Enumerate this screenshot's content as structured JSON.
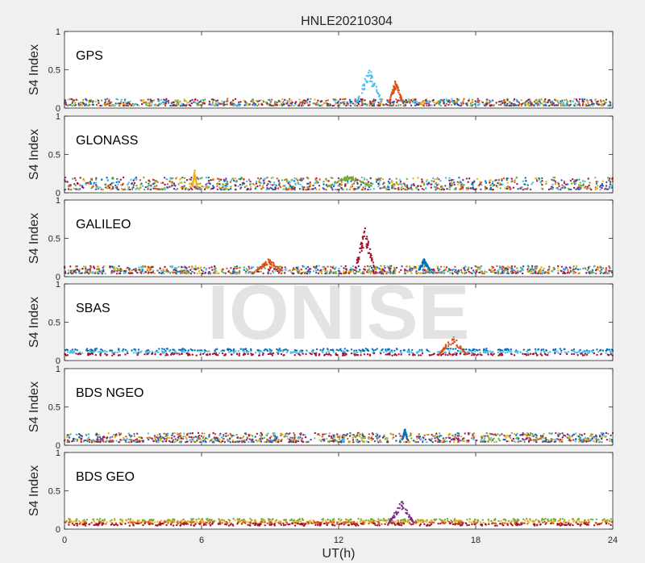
{
  "title": "HNLE20210304",
  "watermark": "IONISE",
  "chart_data": [
    {
      "type": "scatter",
      "panel_label": "GPS",
      "ylabel": "S4 Index",
      "xlim": [
        0,
        24
      ],
      "ylim": [
        0,
        1
      ],
      "xticks": [
        0,
        6,
        12,
        18,
        24
      ],
      "yticks": [
        0,
        0.5,
        1
      ],
      "baseline": [
        0.03,
        0.12
      ],
      "spikes": [
        {
          "x": [
            12.8,
            13.9
          ],
          "peak": 0.55,
          "color": "#4DBEEE"
        },
        {
          "x": [
            14.2,
            14.8
          ],
          "peak": 0.38,
          "color": "#D95319"
        }
      ]
    },
    {
      "type": "scatter",
      "panel_label": "GLONASS",
      "ylabel": "S4 Index",
      "xlim": [
        0,
        24
      ],
      "ylim": [
        0,
        1
      ],
      "xticks": [
        0,
        6,
        12,
        18,
        24
      ],
      "yticks": [
        0,
        0.5,
        1
      ],
      "baseline": [
        0.04,
        0.2
      ],
      "spikes": [
        {
          "x": [
            5.6,
            5.8
          ],
          "peak": 0.31,
          "color": "#EDB120"
        },
        {
          "x": [
            11.5,
            13.5
          ],
          "peak": 0.24,
          "color": "#77AC30"
        }
      ]
    },
    {
      "type": "scatter",
      "panel_label": "GALILEO",
      "ylabel": "S4 Index",
      "xlim": [
        0,
        24
      ],
      "ylim": [
        0,
        1
      ],
      "xticks": [
        0,
        6,
        12,
        18,
        24
      ],
      "yticks": [
        0,
        0.5,
        1
      ],
      "baseline": [
        0.04,
        0.14
      ],
      "spikes": [
        {
          "x": [
            12.7,
            13.6
          ],
          "peak": 0.66,
          "color": "#A2142F"
        },
        {
          "x": [
            8.4,
            9.5
          ],
          "peak": 0.24,
          "color": "#D95319"
        },
        {
          "x": [
            15.5,
            16.0
          ],
          "peak": 0.24,
          "color": "#0072BD"
        }
      ]
    },
    {
      "type": "scatter",
      "panel_label": "SBAS",
      "ylabel": "S4 Index",
      "xlim": [
        0,
        24
      ],
      "ylim": [
        0,
        1
      ],
      "xticks": [
        0,
        6,
        12,
        18,
        24
      ],
      "yticks": [
        0,
        0.5,
        1
      ],
      "bands": [
        {
          "y": 0.14,
          "color": "#0072BD"
        },
        {
          "y": 0.11,
          "color": "#4DBEEE"
        },
        {
          "y": 0.08,
          "color": "#A2142F"
        }
      ],
      "spikes": [
        {
          "x": [
            16.4,
            17.6
          ],
          "peak": 0.34,
          "color": "#D95319"
        }
      ]
    },
    {
      "type": "scatter",
      "panel_label": "BDS NGEO",
      "ylabel": "S4 Index",
      "xlim": [
        0,
        24
      ],
      "ylim": [
        0,
        1
      ],
      "xticks": [
        0,
        6,
        12,
        18,
        24
      ],
      "yticks": [
        0,
        0.5,
        1
      ],
      "baseline": [
        0.04,
        0.16
      ],
      "spikes": [
        {
          "x": [
            14.8,
            15.0
          ],
          "peak": 0.22,
          "color": "#0072BD"
        }
      ]
    },
    {
      "type": "scatter",
      "panel_label": "BDS GEO",
      "ylabel": "S4 Index",
      "xlabel": "UT(h)",
      "xlim": [
        0,
        24
      ],
      "ylim": [
        0,
        1
      ],
      "xticks": [
        0,
        6,
        12,
        18,
        24
      ],
      "yticks": [
        0,
        0.5,
        1
      ],
      "bands": [
        {
          "y": 0.12,
          "color": "#77AC30"
        },
        {
          "y": 0.1,
          "color": "#EDB120"
        },
        {
          "y": 0.08,
          "color": "#D95319"
        },
        {
          "y": 0.06,
          "color": "#A2142F"
        }
      ],
      "spikes": [
        {
          "x": [
            14.2,
            15.3
          ],
          "peak": 0.38,
          "color": "#7E2F8E"
        }
      ]
    }
  ],
  "colors": [
    "#0072BD",
    "#D95319",
    "#EDB120",
    "#7E2F8E",
    "#77AC30",
    "#4DBEEE",
    "#A2142F"
  ]
}
